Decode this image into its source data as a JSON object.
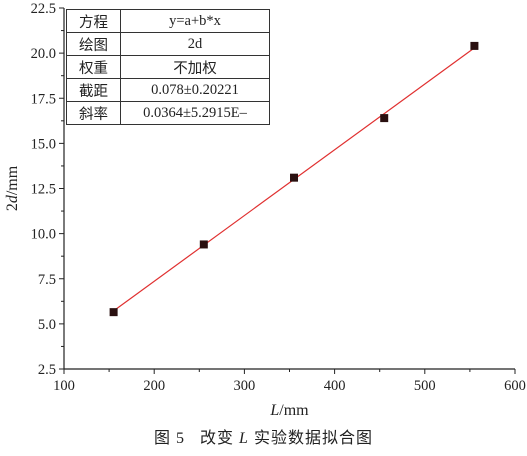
{
  "chart_data": {
    "type": "scatter",
    "x_label_var": "L",
    "x_label_unit": "/mm",
    "y_label_var": "d",
    "y_label_prefix": "2",
    "y_label_unit": "/mm",
    "xlim": [
      100,
      600
    ],
    "ylim": [
      2.5,
      22.5
    ],
    "x_ticks": [
      "100",
      "200",
      "300",
      "400",
      "500",
      "600"
    ],
    "y_ticks": [
      "2.5",
      "5.0",
      "7.5",
      "10.0",
      "12.5",
      "15.0",
      "17.5",
      "20.0",
      "22.5"
    ],
    "x_tick_values": [
      100,
      200,
      300,
      400,
      500,
      600
    ],
    "y_tick_values": [
      2.5,
      5.0,
      7.5,
      10.0,
      12.5,
      15.0,
      17.5,
      20.0,
      22.5
    ],
    "points": [
      {
        "x": 155,
        "y": 5.65
      },
      {
        "x": 255,
        "y": 9.4
      },
      {
        "x": 355,
        "y": 13.1
      },
      {
        "x": 455,
        "y": 16.4
      },
      {
        "x": 555,
        "y": 20.4
      }
    ],
    "fit_line": {
      "x": [
        155,
        555
      ],
      "y": [
        5.72,
        20.29
      ],
      "color": "#e03030"
    },
    "marker_color": "#2a1010",
    "grid": false
  },
  "fit_table": [
    {
      "key": "方程",
      "value": "y=a+b*x"
    },
    {
      "key": "绘图",
      "value": "2d"
    },
    {
      "key": "权重",
      "value": "不加权"
    },
    {
      "key": "截距",
      "value": "0.078±0.20221"
    },
    {
      "key": "斜率",
      "value": "0.0364±5.2915E–"
    }
  ],
  "caption": {
    "fig": "图 5",
    "pre": "改变",
    "var": "L",
    "post": "实验数据拟合图"
  }
}
